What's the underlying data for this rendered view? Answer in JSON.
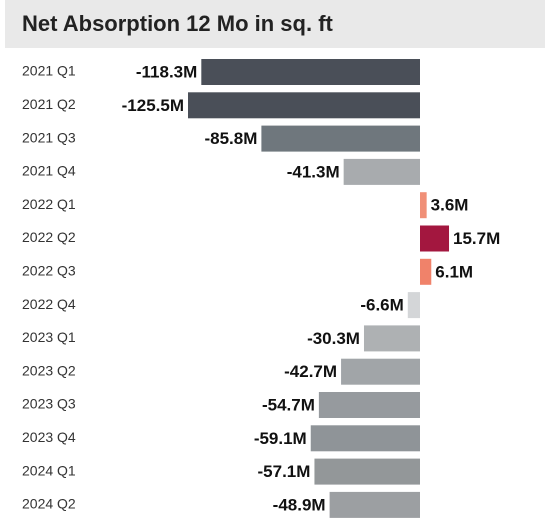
{
  "chart_data": {
    "type": "bar",
    "orientation": "horizontal",
    "title": "Net Absorption 12 Mo in sq. ft",
    "categories": [
      "2021 Q1",
      "2021 Q2",
      "2021 Q3",
      "2021 Q4",
      "2022 Q1",
      "2022 Q2",
      "2022 Q3",
      "2022 Q4",
      "2023 Q1",
      "2023 Q2",
      "2023 Q3",
      "2023 Q4",
      "2024 Q1",
      "2024 Q2"
    ],
    "values": [
      -118.3,
      -125.5,
      -85.8,
      -41.3,
      3.6,
      15.7,
      6.1,
      -6.6,
      -30.3,
      -42.7,
      -54.7,
      -59.1,
      -57.1,
      -48.9
    ],
    "value_labels": [
      "-118.3M",
      "-125.5M",
      "-85.8M",
      "-41.3M",
      "3.6M",
      "15.7M",
      "6.1M",
      "-6.6M",
      "-30.3M",
      "-42.7M",
      "-54.7M",
      "-59.1M",
      "-57.1M",
      "-48.9M"
    ],
    "colors": [
      "#4a4f58",
      "#4a4f58",
      "#6f777d",
      "#a8abae",
      "#f08f77",
      "#a3173f",
      "#f0826a",
      "#d4d6d8",
      "#aeb1b3",
      "#a1a5a8",
      "#969a9e",
      "#8f9498",
      "#939799",
      "#9c9fa2"
    ]
  }
}
